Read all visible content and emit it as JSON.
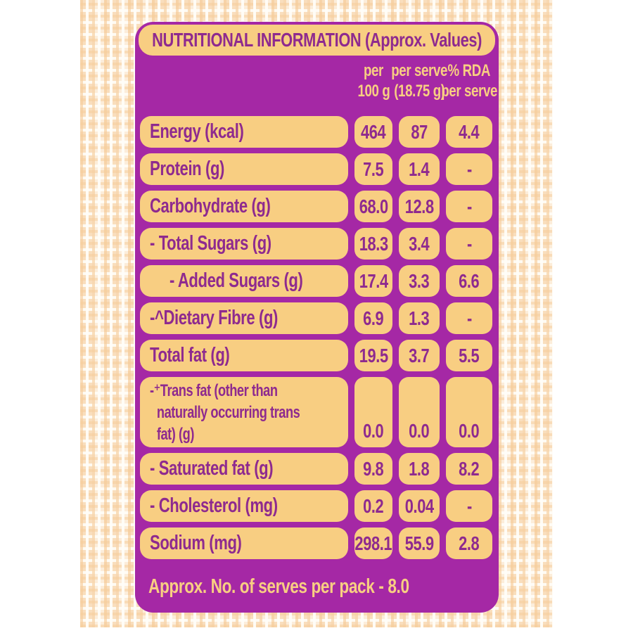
{
  "header": {
    "title": "NUTRITIONAL INFORMATION (Approx. Values)"
  },
  "columns": {
    "per_100g": {
      "line1": "per",
      "line2": "100 g"
    },
    "per_serve": {
      "line1": "per serve",
      "line2": "(18.75 g)"
    },
    "rda": {
      "line1": "% RDA",
      "line2": "per serve"
    }
  },
  "rows": [
    {
      "label": "Energy (kcal)",
      "per_100g": "464",
      "per_serve": "87",
      "rda_percent": "4.4"
    },
    {
      "label": "Protein (g)",
      "per_100g": "7.5",
      "per_serve": "1.4",
      "rda_percent": "-"
    },
    {
      "label": "Carbohydrate (g)",
      "per_100g": "68.0",
      "per_serve": "12.8",
      "rda_percent": "-"
    },
    {
      "label": "- Total Sugars (g)",
      "per_100g": "18.3",
      "per_serve": "3.4",
      "rda_percent": "-"
    },
    {
      "label": "- Added Sugars (g)",
      "per_100g": "17.4",
      "per_serve": "3.3",
      "rda_percent": "6.6"
    },
    {
      "label": "-^Dietary Fibre (g)",
      "per_100g": "6.9",
      "per_serve": "1.3",
      "rda_percent": "-"
    },
    {
      "label": "Total fat (g)",
      "per_100g": "19.5",
      "per_serve": "3.7",
      "rda_percent": "5.5"
    },
    {
      "label": "-⁺Trans fat (other than naturally occurring trans fat) (g)",
      "per_100g": "0.0",
      "per_serve": "0.0",
      "rda_percent": "0.0"
    },
    {
      "label": "- Saturated fat (g)",
      "per_100g": "9.8",
      "per_serve": "1.8",
      "rda_percent": "8.2"
    },
    {
      "label": "- Cholesterol (mg)",
      "per_100g": "0.2",
      "per_serve": "0.04",
      "rda_percent": "-"
    },
    {
      "label": "Sodium (mg)",
      "per_100g": "298.1",
      "per_serve": "55.9",
      "rda_percent": "2.8"
    }
  ],
  "footer": {
    "serves_note": "Approx. No. of serves per pack - 8.0"
  },
  "colors": {
    "panel_purple": "#a528a5",
    "cell_yellow": "#f8ce82",
    "text_purple": "#8e2a8f",
    "fabric_base": "#fbe7cd"
  }
}
